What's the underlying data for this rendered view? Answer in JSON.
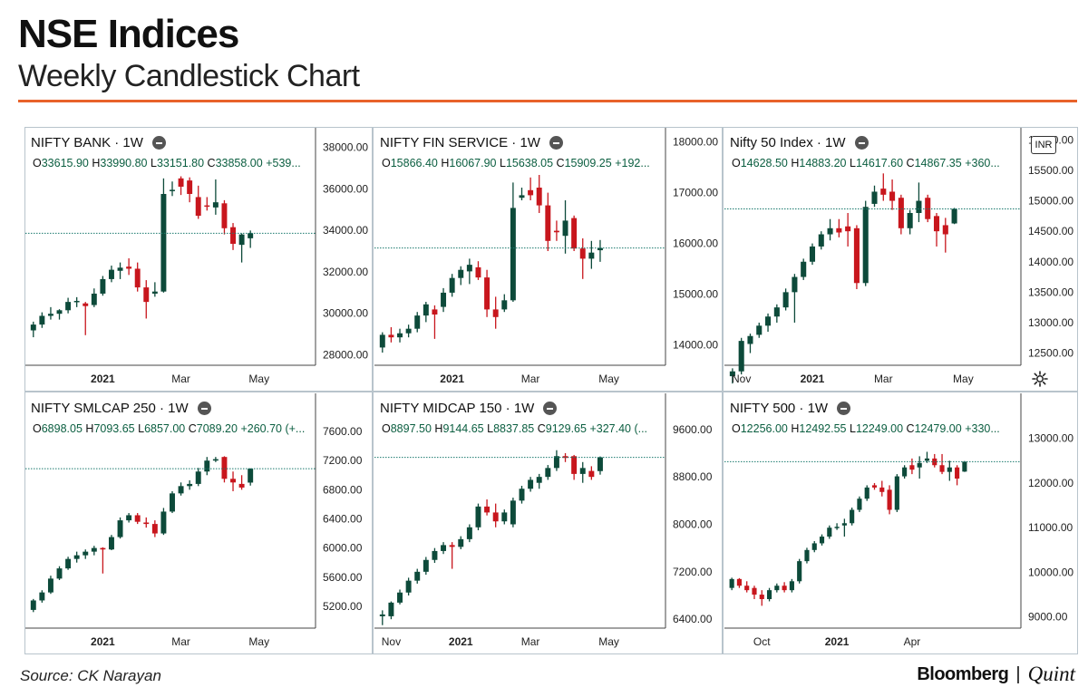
{
  "header": {
    "title": "NSE Indices",
    "subtitle": "Weekly Candlestick Chart"
  },
  "footer": {
    "source": "Source: CK Narayan",
    "brand_primary": "Bloomberg",
    "brand_separator": "|",
    "brand_secondary": "Quint"
  },
  "badges": {
    "currency": "INR"
  },
  "colors": {
    "up": "#0d4a3a",
    "down": "#c8161d",
    "close_line": "#1a7a6e",
    "accent": "#e8622a"
  },
  "icons": {
    "settings": "gear-icon",
    "collapse": "minus-circle-icon"
  },
  "chart_data": [
    {
      "type": "candlestick",
      "title": "NIFTY BANK · 1W",
      "ohlc": {
        "o": "33615.90",
        "h": "33990.80",
        "l": "33151.80",
        "c": "33858.00",
        "change": "+539..."
      },
      "y_ticks": [
        "38000.00",
        "36000.00",
        "34000.00",
        "32000.00",
        "30000.00",
        "28000.00"
      ],
      "ylim": [
        27500,
        38500
      ],
      "x_ticks": [
        {
          "label": "2021",
          "i": 8
        },
        {
          "label": "Mar",
          "i": 17
        },
        {
          "label": "May",
          "i": 26
        }
      ],
      "last_close": 33858,
      "candles": [
        [
          29180,
          29600,
          28850,
          29460
        ],
        [
          29460,
          30050,
          29300,
          29880
        ],
        [
          29880,
          30300,
          29700,
          29980
        ],
        [
          29980,
          30200,
          29700,
          30150
        ],
        [
          30150,
          30750,
          30000,
          30550
        ],
        [
          30550,
          30780,
          30300,
          30600
        ],
        [
          30480,
          30550,
          28950,
          30350
        ],
        [
          30400,
          31200,
          30300,
          30950
        ],
        [
          30950,
          31800,
          30850,
          31650
        ],
        [
          31650,
          32300,
          31500,
          32100
        ],
        [
          32050,
          32450,
          31650,
          32200
        ],
        [
          32250,
          32650,
          31850,
          32150
        ],
        [
          32150,
          32450,
          31050,
          31250
        ],
        [
          31250,
          31600,
          29750,
          30550
        ],
        [
          30950,
          31500,
          30800,
          31050
        ],
        [
          31050,
          36500,
          31000,
          35750
        ],
        [
          35950,
          36350,
          35650,
          35950
        ],
        [
          36500,
          36600,
          35700,
          36100
        ],
        [
          36400,
          36550,
          35350,
          35750
        ],
        [
          35600,
          36150,
          34550,
          34700
        ],
        [
          35200,
          35600,
          34950,
          35150
        ],
        [
          35100,
          36450,
          34750,
          35350
        ],
        [
          35300,
          35450,
          33800,
          34100
        ],
        [
          34150,
          34350,
          33050,
          33350
        ],
        [
          33300,
          33850,
          32450,
          33800
        ],
        [
          33615.9,
          33990.8,
          33151.8,
          33858
        ]
      ]
    },
    {
      "type": "candlestick",
      "title": "NIFTY FIN SERVICE · 1W",
      "ohlc": {
        "o": "15866.40",
        "h": "16067.90",
        "l": "15638.05",
        "c": "15909.25",
        "change": "+192..."
      },
      "y_ticks": [
        "18000.00",
        "17000.00",
        "16000.00",
        "15000.00",
        "14000.00"
      ],
      "ylim": [
        13600,
        18100
      ],
      "x_ticks": [
        {
          "label": "2021",
          "i": 8
        },
        {
          "label": "Mar",
          "i": 17
        },
        {
          "label": "May",
          "i": 26
        }
      ],
      "last_close": 15909.25,
      "candles": [
        [
          13950,
          14250,
          13850,
          14200
        ],
        [
          14200,
          14350,
          14050,
          14150
        ],
        [
          14150,
          14320,
          14050,
          14230
        ],
        [
          14230,
          14400,
          14150,
          14320
        ],
        [
          14320,
          14650,
          14250,
          14580
        ],
        [
          14580,
          14850,
          14450,
          14800
        ],
        [
          14700,
          14780,
          14120,
          14600
        ],
        [
          14750,
          15120,
          14650,
          15030
        ],
        [
          15030,
          15400,
          14950,
          15320
        ],
        [
          15320,
          15550,
          15180,
          15480
        ],
        [
          15450,
          15700,
          15200,
          15580
        ],
        [
          15530,
          15650,
          15280,
          15330
        ],
        [
          15330,
          15480,
          14550,
          14700
        ],
        [
          14700,
          14950,
          14320,
          14550
        ],
        [
          14700,
          15000,
          14650,
          14880
        ],
        [
          14880,
          17200,
          14850,
          16700
        ],
        [
          16900,
          17100,
          16850,
          16950
        ],
        [
          17050,
          17300,
          16850,
          16950
        ],
        [
          17100,
          17350,
          16600,
          16750
        ],
        [
          16750,
          17000,
          15850,
          16050
        ],
        [
          16250,
          16450,
          16050,
          16220
        ],
        [
          16150,
          16850,
          15800,
          16450
        ],
        [
          16500,
          16550,
          15850,
          15900
        ],
        [
          15900,
          16100,
          15300,
          15700
        ],
        [
          15700,
          16050,
          15500,
          15820
        ],
        [
          15866.4,
          16067.9,
          15638.05,
          15909.25
        ]
      ]
    },
    {
      "type": "candlestick",
      "title": "Nifty 50 Index · 1W",
      "ohlc": {
        "o": "14628.50",
        "h": "14883.20",
        "l": "14617.60",
        "c": "14867.35",
        "change": "+360..."
      },
      "y_ticks": [
        "16000.00",
        "15500.00",
        "15000.00",
        "14500.00",
        "14000.00",
        "13500.00",
        "13000.00",
        "12500.00"
      ],
      "ylim": [
        12300,
        16050
      ],
      "x_ticks": [
        {
          "label": "Nov",
          "i": 1
        },
        {
          "label": "2021",
          "i": 9
        },
        {
          "label": "Mar",
          "i": 17
        },
        {
          "label": "May",
          "i": 26
        }
      ],
      "last_close": 14867.35,
      "candles": [
        [
          12120,
          12250,
          12000,
          12200
        ],
        [
          12200,
          12750,
          12150,
          12700
        ],
        [
          12650,
          12820,
          12500,
          12780
        ],
        [
          12800,
          13000,
          12750,
          12950
        ],
        [
          12950,
          13150,
          12850,
          13100
        ],
        [
          13100,
          13300,
          13000,
          13250
        ],
        [
          13250,
          13560,
          13200,
          13500
        ],
        [
          13500,
          13800,
          13000,
          13750
        ],
        [
          13750,
          14050,
          13700,
          14000
        ],
        [
          14000,
          14300,
          13950,
          14250
        ],
        [
          14250,
          14500,
          14200,
          14450
        ],
        [
          14450,
          14700,
          14350,
          14550
        ],
        [
          14550,
          14700,
          14400,
          14480
        ],
        [
          14580,
          14800,
          14250,
          14500
        ],
        [
          14550,
          14600,
          13550,
          13650
        ],
        [
          13650,
          15000,
          13600,
          14900
        ],
        [
          14950,
          15250,
          14900,
          15150
        ],
        [
          15200,
          15450,
          15000,
          15100
        ],
        [
          15150,
          15350,
          14850,
          15000
        ],
        [
          15050,
          15100,
          14450,
          14550
        ],
        [
          14550,
          14850,
          14450,
          14800
        ],
        [
          14800,
          15300,
          14650,
          15000
        ],
        [
          15050,
          15100,
          14650,
          14700
        ],
        [
          14750,
          14800,
          14250,
          14500
        ],
        [
          14600,
          14720,
          14150,
          14450
        ],
        [
          14628.5,
          14883.2,
          14617.6,
          14867.35
        ]
      ]
    },
    {
      "type": "candlestick",
      "title": "NIFTY SMLCAP 250 · 1W",
      "ohlc": {
        "o": "6898.05",
        "h": "7093.65",
        "l": "6857.00",
        "c": "7089.20",
        "change": "+260.70 (+..."
      },
      "y_ticks": [
        "7600.00",
        "7200.00",
        "6800.00",
        "6400.00",
        "6000.00",
        "5600.00",
        "5200.00"
      ],
      "ylim": [
        4900,
        7750
      ],
      "x_ticks": [
        {
          "label": "2021",
          "i": 8
        },
        {
          "label": "Mar",
          "i": 17
        },
        {
          "label": "May",
          "i": 26
        }
      ],
      "last_close": 7089.2,
      "candles": [
        [
          5150,
          5300,
          5120,
          5280
        ],
        [
          5280,
          5420,
          5250,
          5390
        ],
        [
          5390,
          5620,
          5370,
          5580
        ],
        [
          5580,
          5750,
          5560,
          5720
        ],
        [
          5720,
          5880,
          5700,
          5850
        ],
        [
          5850,
          5950,
          5800,
          5900
        ],
        [
          5900,
          5980,
          5850,
          5950
        ],
        [
          5950,
          6030,
          5900,
          6000
        ],
        [
          6000,
          6010,
          5650,
          5980
        ],
        [
          5980,
          6180,
          5970,
          6150
        ],
        [
          6150,
          6420,
          6130,
          6380
        ],
        [
          6380,
          6480,
          6350,
          6450
        ],
        [
          6450,
          6480,
          6330,
          6360
        ],
        [
          6350,
          6420,
          6280,
          6330
        ],
        [
          6330,
          6380,
          6150,
          6200
        ],
        [
          6200,
          6550,
          6180,
          6500
        ],
        [
          6500,
          6780,
          6480,
          6750
        ],
        [
          6750,
          6900,
          6720,
          6850
        ],
        [
          6850,
          6930,
          6800,
          6880
        ],
        [
          6880,
          7100,
          6850,
          7050
        ],
        [
          7050,
          7250,
          7000,
          7200
        ],
        [
          7200,
          7250,
          7180,
          7220
        ],
        [
          7250,
          7260,
          6900,
          6950
        ],
        [
          6950,
          7050,
          6780,
          6900
        ],
        [
          6880,
          7000,
          6800,
          6830
        ],
        [
          6898.05,
          7093.65,
          6857,
          7089.2
        ]
      ]
    },
    {
      "type": "candlestick",
      "title": "NIFTY MIDCAP 150 · 1W",
      "ohlc": {
        "o": "8897.50",
        "h": "9144.65",
        "l": "8837.85",
        "c": "9129.65",
        "change": "+327.40 (..."
      },
      "y_ticks": [
        "9600.00",
        "8800.00",
        "8000.00",
        "7200.00",
        "6400.00"
      ],
      "ylim": [
        6250,
        9750
      ],
      "x_ticks": [
        {
          "label": "Nov",
          "i": 1
        },
        {
          "label": "2021",
          "i": 9
        },
        {
          "label": "Mar",
          "i": 17
        },
        {
          "label": "May",
          "i": 26
        }
      ],
      "last_close": 9129.65,
      "candles": [
        [
          6450,
          6550,
          6300,
          6480
        ],
        [
          6450,
          6700,
          6400,
          6680
        ],
        [
          6680,
          6900,
          6650,
          6850
        ],
        [
          6850,
          7100,
          6800,
          7050
        ],
        [
          7050,
          7250,
          7000,
          7200
        ],
        [
          7200,
          7450,
          7150,
          7400
        ],
        [
          7400,
          7600,
          7350,
          7550
        ],
        [
          7550,
          7700,
          7500,
          7650
        ],
        [
          7650,
          7700,
          7250,
          7620
        ],
        [
          7620,
          7800,
          7580,
          7750
        ],
        [
          7750,
          8000,
          7700,
          7950
        ],
        [
          7950,
          8350,
          7900,
          8300
        ],
        [
          8300,
          8420,
          8150,
          8200
        ],
        [
          8200,
          8350,
          7950,
          8050
        ],
        [
          8050,
          8250,
          8000,
          8200
        ],
        [
          8000,
          8450,
          7950,
          8400
        ],
        [
          8400,
          8650,
          8350,
          8600
        ],
        [
          8600,
          8800,
          8550,
          8750
        ],
        [
          8700,
          8850,
          8600,
          8800
        ],
        [
          8800,
          9000,
          8750,
          8950
        ],
        [
          8950,
          9250,
          8900,
          9150
        ],
        [
          9150,
          9200,
          9050,
          9120
        ],
        [
          9150,
          9170,
          8750,
          8850
        ],
        [
          8850,
          9050,
          8700,
          8950
        ],
        [
          8900,
          8980,
          8750,
          8800
        ],
        [
          8897.5,
          9144.65,
          8837.85,
          9129.65
        ]
      ]
    },
    {
      "type": "candlestick",
      "title": "NIFTY 500 · 1W",
      "ohlc": {
        "o": "12256.00",
        "h": "12492.55",
        "l": "12249.00",
        "c": "12479.00",
        "change": "+330..."
      },
      "y_ticks": [
        "13000.00",
        "12000.00",
        "11000.00",
        "10000.00",
        "9000.00"
      ],
      "ylim": [
        8750,
        13400
      ],
      "x_ticks": [
        {
          "label": "Oct",
          "i": 4
        },
        {
          "label": "2021",
          "i": 14
        },
        {
          "label": "Apr",
          "i": 24
        }
      ],
      "last_close": 12479,
      "candles": [
        [
          9650,
          9880,
          9600,
          9850
        ],
        [
          9850,
          9870,
          9650,
          9700
        ],
        [
          9700,
          9800,
          9550,
          9600
        ],
        [
          9650,
          9700,
          9400,
          9500
        ],
        [
          9500,
          9600,
          9250,
          9400
        ],
        [
          9400,
          9650,
          9350,
          9600
        ],
        [
          9600,
          9750,
          9550,
          9700
        ],
        [
          9700,
          9780,
          9550,
          9600
        ],
        [
          9600,
          9850,
          9550,
          9800
        ],
        [
          9800,
          10300,
          9750,
          10250
        ],
        [
          10250,
          10550,
          10200,
          10500
        ],
        [
          10500,
          10700,
          10450,
          10650
        ],
        [
          10650,
          10850,
          10600,
          10800
        ],
        [
          10800,
          11050,
          10750,
          11000
        ],
        [
          11000,
          11100,
          10950,
          11020
        ],
        [
          11050,
          11200,
          10800,
          11100
        ],
        [
          11100,
          11450,
          11050,
          11400
        ],
        [
          11400,
          11700,
          11350,
          11650
        ],
        [
          11650,
          11950,
          11600,
          11900
        ],
        [
          11950,
          12000,
          11850,
          11900
        ],
        [
          11900,
          12050,
          11700,
          11800
        ],
        [
          11850,
          11950,
          11300,
          11400
        ],
        [
          11400,
          12200,
          11350,
          12150
        ],
        [
          12150,
          12400,
          12100,
          12350
        ],
        [
          12400,
          12550,
          12200,
          12300
        ],
        [
          12350,
          12600,
          12100,
          12450
        ],
        [
          12500,
          12700,
          12450,
          12550
        ],
        [
          12550,
          12650,
          12350,
          12400
        ],
        [
          12400,
          12650,
          12200,
          12250
        ],
        [
          12250,
          12500,
          12050,
          12350
        ],
        [
          12350,
          12400,
          11950,
          12100
        ],
        [
          12256,
          12492.55,
          12249,
          12479
        ]
      ]
    }
  ]
}
